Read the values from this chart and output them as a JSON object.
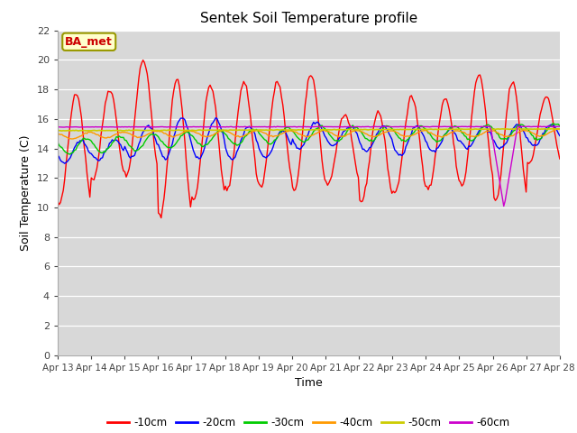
{
  "title": "Sentek Soil Temperature profile",
  "xlabel": "Time",
  "ylabel": "Soil Temperature (C)",
  "ylim": [
    0,
    22
  ],
  "yticks": [
    0,
    2,
    4,
    6,
    8,
    10,
    12,
    14,
    16,
    18,
    20,
    22
  ],
  "annotation": "BA_met",
  "fig_bg_color": "#ffffff",
  "plot_bg_color": "#d8d8d8",
  "series_colors": {
    "-10cm": "#ff0000",
    "-20cm": "#0000ff",
    "-30cm": "#00cc00",
    "-40cm": "#ff9900",
    "-50cm": "#cccc00",
    "-60cm": "#cc00cc"
  },
  "x_tick_labels": [
    "Apr 13",
    "Apr 14",
    "Apr 15",
    "Apr 16",
    "Apr 17",
    "Apr 18",
    "Apr 19",
    "Apr 20",
    "Apr 21",
    "Apr 22",
    "Apr 23",
    "Apr 24",
    "Apr 25",
    "Apr 26",
    "Apr 27",
    "Apr 28"
  ],
  "num_days": 15,
  "points_per_day": 24
}
